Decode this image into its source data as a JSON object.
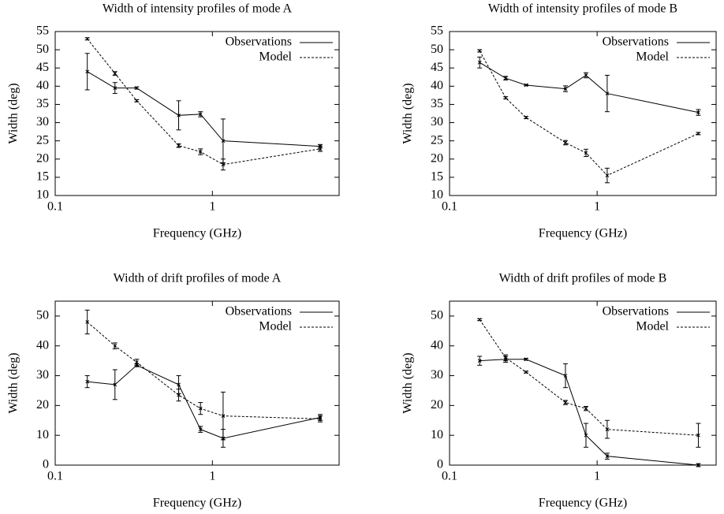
{
  "chart_data": [
    {
      "type": "line",
      "title": "Width of intensity profiles of mode A",
      "x_label": "Frequency (GHz)",
      "y_label": "Width (deg)",
      "x": [
        0.16,
        0.24,
        0.33,
        0.61,
        0.84,
        1.17,
        4.85
      ],
      "xscale": "log",
      "xlim": [
        0.1,
        6.4
      ],
      "xticks": [
        0.1,
        1
      ],
      "ylim": [
        10,
        55
      ],
      "yticks": [
        10,
        15,
        20,
        25,
        30,
        35,
        40,
        45,
        50,
        55
      ],
      "legend": "upper right",
      "series": [
        {
          "name": "Observations",
          "color": "#000000",
          "line_style": "solid",
          "values": [
            44,
            39.5,
            39.5,
            32,
            32.3,
            25,
            23.5
          ],
          "errors": [
            5,
            1.5,
            0.3,
            4,
            0.7,
            6,
            0.5
          ]
        },
        {
          "name": "Model",
          "color": "#000000",
          "line_style": "dashed",
          "values": [
            53,
            43.5,
            36,
            23.7,
            22,
            18.5,
            22.8
          ],
          "errors": [
            0.3,
            0.5,
            0.3,
            0.5,
            0.8,
            1.5,
            0.7
          ]
        }
      ]
    },
    {
      "type": "line",
      "title": "Width of intensity profiles of mode B",
      "x_label": "Frequency (GHz)",
      "y_label": "Width (deg)",
      "x": [
        0.16,
        0.24,
        0.33,
        0.61,
        0.84,
        1.17,
        4.85
      ],
      "xscale": "log",
      "xlim": [
        0.1,
        6.4
      ],
      "xticks": [
        0.1,
        1
      ],
      "ylim": [
        10,
        55
      ],
      "yticks": [
        10,
        15,
        20,
        25,
        30,
        35,
        40,
        45,
        50,
        55
      ],
      "legend": "upper right",
      "series": [
        {
          "name": "Observations",
          "color": "#000000",
          "line_style": "solid",
          "values": [
            46.5,
            42.2,
            40.3,
            39.3,
            43,
            38,
            32.8
          ],
          "errors": [
            1.5,
            0.5,
            0.2,
            0.8,
            0.7,
            5,
            0.8
          ]
        },
        {
          "name": "Model",
          "color": "#000000",
          "line_style": "dashed",
          "values": [
            49.7,
            36.8,
            31.4,
            24.5,
            21.7,
            15.5,
            27
          ],
          "errors": [
            0.3,
            0.3,
            0.3,
            0.6,
            1,
            2,
            0.3
          ]
        }
      ]
    },
    {
      "type": "line",
      "title": "Width of drift profiles of mode A",
      "x_label": "Frequency (GHz)",
      "y_label": "Width (deg)",
      "x": [
        0.16,
        0.24,
        0.33,
        0.61,
        0.84,
        1.17,
        4.85
      ],
      "xscale": "log",
      "xlim": [
        0.1,
        6.4
      ],
      "xticks": [
        0.1,
        1
      ],
      "ylim": [
        0,
        55
      ],
      "yticks": [
        0,
        10,
        20,
        30,
        40,
        50
      ],
      "legend": "upper right",
      "series": [
        {
          "name": "Observations",
          "color": "#000000",
          "line_style": "solid",
          "values": [
            28,
            27,
            33.5,
            27,
            12,
            9,
            16
          ],
          "errors": [
            2,
            5,
            0.5,
            3,
            1,
            3,
            1
          ]
        },
        {
          "name": "Model",
          "color": "#000000",
          "line_style": "dashed",
          "values": [
            48,
            40,
            34.5,
            23.5,
            19,
            16.5,
            15.5
          ],
          "errors": [
            4,
            1,
            1,
            2,
            2,
            8,
            1
          ]
        }
      ]
    },
    {
      "type": "line",
      "title": "Width of drift profiles of mode B",
      "x_label": "Frequency (GHz)",
      "y_label": "Width (deg)",
      "x": [
        0.16,
        0.24,
        0.33,
        0.61,
        0.84,
        1.17,
        4.85
      ],
      "xscale": "log",
      "xlim": [
        0.1,
        6.4
      ],
      "xticks": [
        0.1,
        1
      ],
      "ylim": [
        0,
        55
      ],
      "yticks": [
        0,
        10,
        20,
        30,
        40,
        50
      ],
      "legend": "upper right",
      "series": [
        {
          "name": "Observations",
          "color": "#000000",
          "line_style": "solid",
          "values": [
            35,
            35.5,
            35.5,
            30,
            10,
            3,
            0
          ],
          "errors": [
            1.5,
            1,
            0.3,
            4,
            4,
            1,
            0.5
          ]
        },
        {
          "name": "Model",
          "color": "#000000",
          "line_style": "dashed",
          "values": [
            48.8,
            36,
            31.2,
            21,
            19,
            12,
            10
          ],
          "errors": [
            0.3,
            1,
            0.3,
            0.7,
            0.7,
            3,
            4
          ]
        }
      ]
    }
  ]
}
